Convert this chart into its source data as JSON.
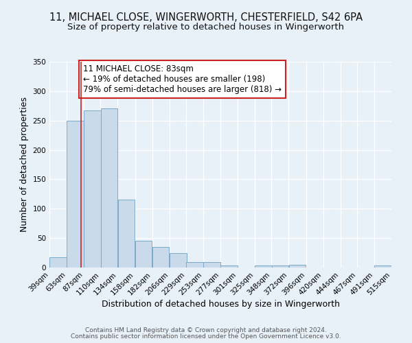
{
  "title1": "11, MICHAEL CLOSE, WINGERWORTH, CHESTERFIELD, S42 6PA",
  "title2": "Size of property relative to detached houses in Wingerworth",
  "xlabel": "Distribution of detached houses by size in Wingerworth",
  "ylabel": "Number of detached properties",
  "bar_left_edges": [
    39,
    63,
    87,
    110,
    134,
    158,
    182,
    206,
    229,
    253,
    277,
    301,
    325,
    348,
    372,
    396,
    420,
    444,
    467,
    491
  ],
  "bar_heights": [
    18,
    250,
    267,
    271,
    116,
    45,
    35,
    24,
    9,
    9,
    3,
    0,
    4,
    4,
    5,
    0,
    0,
    0,
    0,
    3
  ],
  "bin_width": 24,
  "tick_labels": [
    "39sqm",
    "63sqm",
    "87sqm",
    "110sqm",
    "134sqm",
    "158sqm",
    "182sqm",
    "206sqm",
    "229sqm",
    "253sqm",
    "277sqm",
    "301sqm",
    "325sqm",
    "348sqm",
    "372sqm",
    "396sqm",
    "420sqm",
    "444sqm",
    "467sqm",
    "491sqm",
    "515sqm"
  ],
  "bar_color": "#c9daea",
  "bar_edge_color": "#7aaac8",
  "vline_x": 83,
  "vline_color": "#cc2222",
  "ylim": [
    0,
    350
  ],
  "yticks": [
    0,
    50,
    100,
    150,
    200,
    250,
    300,
    350
  ],
  "annotation_title": "11 MICHAEL CLOSE: 83sqm",
  "annotation_line1": "← 19% of detached houses are smaller (198)",
  "annotation_line2": "79% of semi-detached houses are larger (818) →",
  "annotation_box_color": "#ffffff",
  "annotation_box_edge_color": "#cc2222",
  "footer1": "Contains HM Land Registry data © Crown copyright and database right 2024.",
  "footer2": "Contains public sector information licensed under the Open Government Licence v3.0.",
  "background_color": "#e8f0f8",
  "grid_color": "#ffffff",
  "title_fontsize": 10.5,
  "subtitle_fontsize": 9.5,
  "ylabel_fontsize": 9,
  "xlabel_fontsize": 9,
  "tick_fontsize": 7.5,
  "footer_fontsize": 6.5,
  "annotation_fontsize": 8.5
}
